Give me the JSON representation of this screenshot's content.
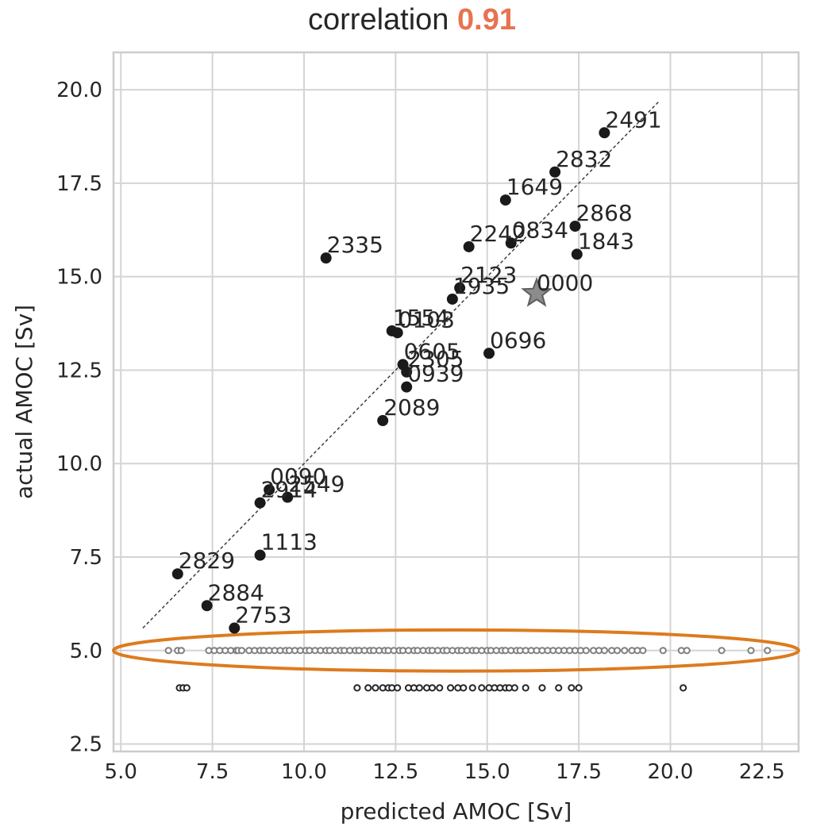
{
  "chart_data": {
    "type": "scatter",
    "title_prefix": "correlation",
    "title_value": "0.91",
    "title_value_color": "#e8734f",
    "xlabel": "predicted AMOC [Sv]",
    "ylabel": "actual AMOC [Sv]",
    "xlim": [
      4.8,
      23.5
    ],
    "ylim": [
      2.3,
      21.0
    ],
    "xticks": [
      5.0,
      7.5,
      10.0,
      12.5,
      15.0,
      17.5,
      20.0,
      22.5
    ],
    "xtick_labels": [
      "5.0",
      "7.5",
      "10.0",
      "12.5",
      "15.0",
      "17.5",
      "20.0",
      "22.5"
    ],
    "yticks": [
      2.5,
      5.0,
      7.5,
      10.0,
      12.5,
      15.0,
      17.5,
      20.0
    ],
    "ytick_labels": [
      "2.5",
      "5.0",
      "7.5",
      "10.0",
      "12.5",
      "15.0",
      "17.5",
      "20.0"
    ],
    "grid": true,
    "labeled_points": [
      {
        "label": "2491",
        "x": 18.2,
        "y": 18.85
      },
      {
        "label": "2832",
        "x": 16.85,
        "y": 17.8
      },
      {
        "label": "1649",
        "x": 15.5,
        "y": 17.05
      },
      {
        "label": "2868",
        "x": 17.4,
        "y": 16.35
      },
      {
        "label": "2242",
        "x": 14.5,
        "y": 15.8
      },
      {
        "label": "0834",
        "x": 15.65,
        "y": 15.9
      },
      {
        "label": "1843",
        "x": 17.45,
        "y": 15.6
      },
      {
        "label": "2335",
        "x": 10.6,
        "y": 15.5
      },
      {
        "label": "2123",
        "x": 14.25,
        "y": 14.7
      },
      {
        "label": "1935",
        "x": 14.05,
        "y": 14.4
      },
      {
        "label": "1554",
        "x": 12.4,
        "y": 13.55
      },
      {
        "label": "0103",
        "x": 12.55,
        "y": 13.5
      },
      {
        "label": "0696",
        "x": 15.05,
        "y": 12.95
      },
      {
        "label": "0605",
        "x": 12.7,
        "y": 12.65
      },
      {
        "label": "2305",
        "x": 12.8,
        "y": 12.45
      },
      {
        "label": "0939",
        "x": 12.8,
        "y": 12.05
      },
      {
        "label": "2089",
        "x": 12.15,
        "y": 11.15
      },
      {
        "label": "0090",
        "x": 9.05,
        "y": 9.3
      },
      {
        "label": "2549",
        "x": 9.55,
        "y": 9.1
      },
      {
        "label": "2914",
        "x": 8.8,
        "y": 8.95
      },
      {
        "label": "1113",
        "x": 8.8,
        "y": 7.55
      },
      {
        "label": "2829",
        "x": 6.55,
        "y": 7.05
      },
      {
        "label": "2884",
        "x": 7.35,
        "y": 6.2
      },
      {
        "label": "2753",
        "x": 8.1,
        "y": 5.6
      }
    ],
    "reference_point": {
      "label": "0000",
      "x": 16.35,
      "y": 14.55
    },
    "fit_line": {
      "x": [
        5.6,
        19.7
      ],
      "y": [
        5.6,
        19.7
      ]
    },
    "predicted_only_row_y": 5.0,
    "predicted_only_x": [
      6.3,
      6.55,
      6.65,
      7.4,
      7.55,
      7.7,
      7.85,
      8.0,
      8.15,
      8.2,
      8.3,
      8.5,
      8.65,
      8.8,
      8.9,
      9.05,
      9.2,
      9.35,
      9.5,
      9.6,
      9.75,
      9.9,
      10.05,
      10.15,
      10.3,
      10.45,
      10.6,
      10.7,
      10.85,
      11.0,
      11.1,
      11.25,
      11.4,
      11.5,
      11.65,
      11.8,
      11.9,
      12.05,
      12.2,
      12.3,
      12.45,
      12.6,
      12.7,
      12.85,
      13.0,
      13.1,
      13.25,
      13.4,
      13.5,
      13.65,
      13.8,
      13.9,
      14.05,
      14.2,
      14.3,
      14.45,
      14.6,
      14.7,
      14.85,
      15.0,
      15.1,
      15.25,
      15.4,
      15.5,
      15.65,
      15.8,
      15.9,
      16.05,
      16.2,
      16.35,
      16.5,
      16.65,
      16.8,
      16.95,
      17.1,
      17.25,
      17.4,
      17.55,
      17.7,
      17.9,
      18.05,
      18.2,
      18.4,
      18.55,
      18.75,
      18.95,
      19.1,
      19.25,
      19.8,
      20.3,
      20.45,
      21.4,
      22.2,
      22.65
    ],
    "unlabeled_row_y": 4.0,
    "unlabeled_x": [
      6.6,
      6.7,
      6.8,
      11.45,
      11.75,
      11.95,
      12.15,
      12.3,
      12.4,
      12.55,
      12.85,
      13.0,
      13.15,
      13.35,
      13.5,
      13.7,
      14.0,
      14.2,
      14.35,
      14.6,
      14.85,
      15.05,
      15.2,
      15.35,
      15.5,
      15.6,
      15.75,
      16.05,
      16.5,
      16.95,
      17.3,
      17.5,
      20.35
    ],
    "highlight_ellipse": {
      "cx": 14.15,
      "cy": 5.0,
      "rx": 9.35,
      "ry": 0.55,
      "color": "#dd7b1f"
    }
  }
}
